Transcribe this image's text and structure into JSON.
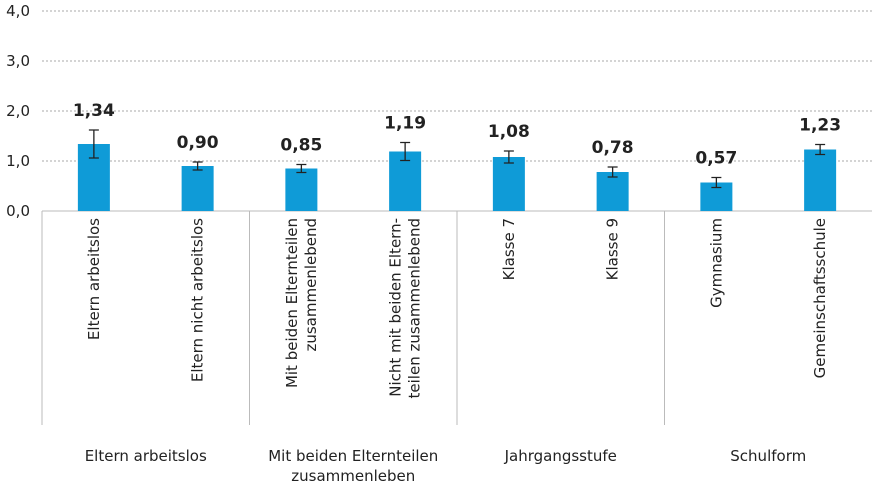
{
  "chart_data": {
    "type": "bar",
    "categories": [
      [
        "Eltern arbeitslos"
      ],
      [
        "Eltern nicht arbeitslos"
      ],
      [
        "Mit beiden Elternteilen",
        "zusammenlebend"
      ],
      [
        "Nicht mit beiden Eltern-",
        "teilen zusammenlebend"
      ],
      [
        "Klasse 7"
      ],
      [
        "Klasse 9"
      ],
      [
        "Gymnasium"
      ],
      [
        "Gemeinschaftsschule"
      ]
    ],
    "groups": [
      [
        "Eltern arbeitslos"
      ],
      [
        "Mit beiden Elternteilen",
        "zusammenleben"
      ],
      [
        "Jahrgangsstufe"
      ],
      [
        "Schulform"
      ]
    ],
    "values": [
      1.34,
      0.9,
      0.85,
      1.19,
      1.08,
      0.78,
      0.57,
      1.23
    ],
    "value_labels": [
      "1,34",
      "0,90",
      "0,85",
      "1,19",
      "1,08",
      "0,78",
      "0,57",
      "1,23"
    ],
    "errors": [
      0.28,
      0.08,
      0.08,
      0.18,
      0.12,
      0.1,
      0.1,
      0.1
    ],
    "color": "#0f9bd7",
    "ylim": [
      0,
      4
    ],
    "yticks": [
      {
        "value": 0,
        "label": "0,0"
      },
      {
        "value": 1,
        "label": "1,0"
      },
      {
        "value": 2,
        "label": "2,0"
      },
      {
        "value": 3,
        "label": "3,0"
      },
      {
        "value": 4,
        "label": "4,0"
      }
    ],
    "grid": true
  }
}
